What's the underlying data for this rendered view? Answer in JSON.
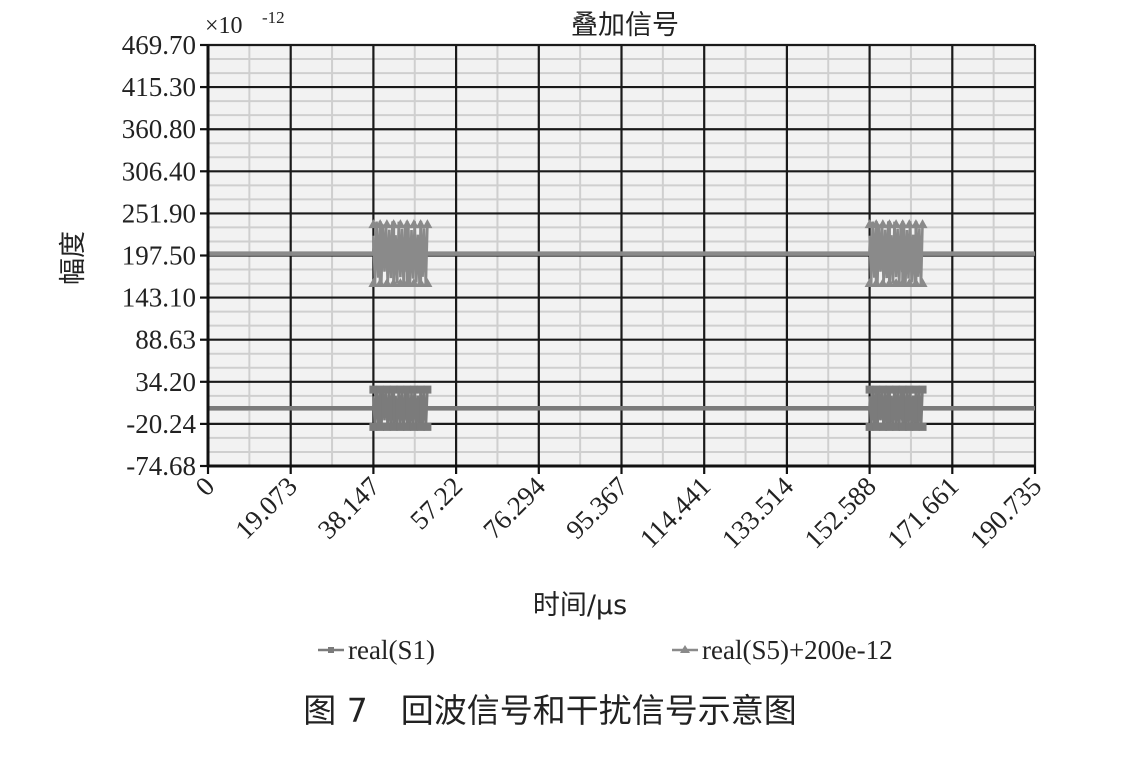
{
  "chart_data": {
    "type": "line",
    "title": "叠加信号",
    "xlabel": "时间/μs",
    "ylabel": "幅度",
    "y_multiplier": "×10",
    "y_multiplier_exp": "-12",
    "xlim": [
      0,
      190.735
    ],
    "ylim": [
      -74.68,
      469.7
    ],
    "x_tick_labels": [
      "0",
      "19.073",
      "38.147",
      "57.22",
      "76.294",
      "95.367",
      "114.441",
      "133.514",
      "152.588",
      "171.661",
      "190.735"
    ],
    "y_tick_labels": [
      "469.70",
      "415.30",
      "360.80",
      "306.40",
      "251.90",
      "197.50",
      "143.10",
      "88.63",
      "34.20",
      "-20.24",
      "-74.68"
    ],
    "y_ticks": [
      469.7,
      415.3,
      360.8,
      306.4,
      251.9,
      197.5,
      143.1,
      88.63,
      34.2,
      -20.24,
      -74.68
    ],
    "grid": true,
    "legend_position": "bottom",
    "series": [
      {
        "name": "real(S1)",
        "color": "#7b7b7b",
        "marker": "square",
        "baseline": 0,
        "bursts": [
          {
            "x": [
              38.147,
              50.6
            ],
            "amplitude": 28
          },
          {
            "x": [
              152.588,
              164.8
            ],
            "amplitude": 28
          }
        ]
      },
      {
        "name": "real(S5)+200e-12",
        "color": "#8a8a8a",
        "marker": "triangle",
        "baseline": 200,
        "bursts": [
          {
            "x": [
              38.147,
              50.6
            ],
            "amplitude": 42
          },
          {
            "x": [
              152.588,
              164.8
            ],
            "amplitude": 42
          }
        ]
      }
    ]
  },
  "caption": "图 7　回波信号和干扰信号示意图"
}
